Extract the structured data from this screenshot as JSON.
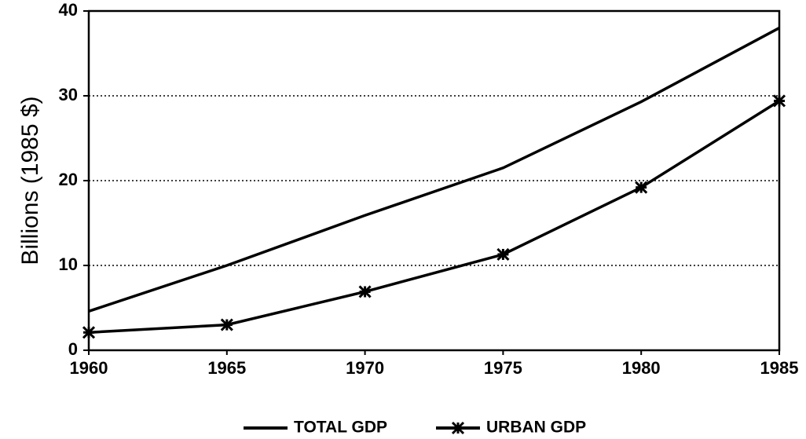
{
  "chart_data": {
    "type": "line",
    "y_label": "Billions (1985 $)",
    "x": [
      1960,
      1965,
      1970,
      1975,
      1980,
      1985
    ],
    "xlim": [
      1960,
      1985
    ],
    "xticks": [
      1960,
      1965,
      1970,
      1975,
      1980,
      1985
    ],
    "ylim": [
      0,
      40
    ],
    "yticks": [
      0,
      10,
      20,
      30,
      40
    ],
    "grid": true,
    "legend": "bottom",
    "series": [
      {
        "name": "TOTAL GDP",
        "color": "#000000",
        "marker": "none",
        "values": [
          4.6,
          10.0,
          15.9,
          21.5,
          29.3,
          38.0
        ]
      },
      {
        "name": "URBAN GDP",
        "color": "#000000",
        "marker": "x",
        "values": [
          2.1,
          3.0,
          6.9,
          11.3,
          19.2,
          29.4
        ]
      }
    ]
  }
}
